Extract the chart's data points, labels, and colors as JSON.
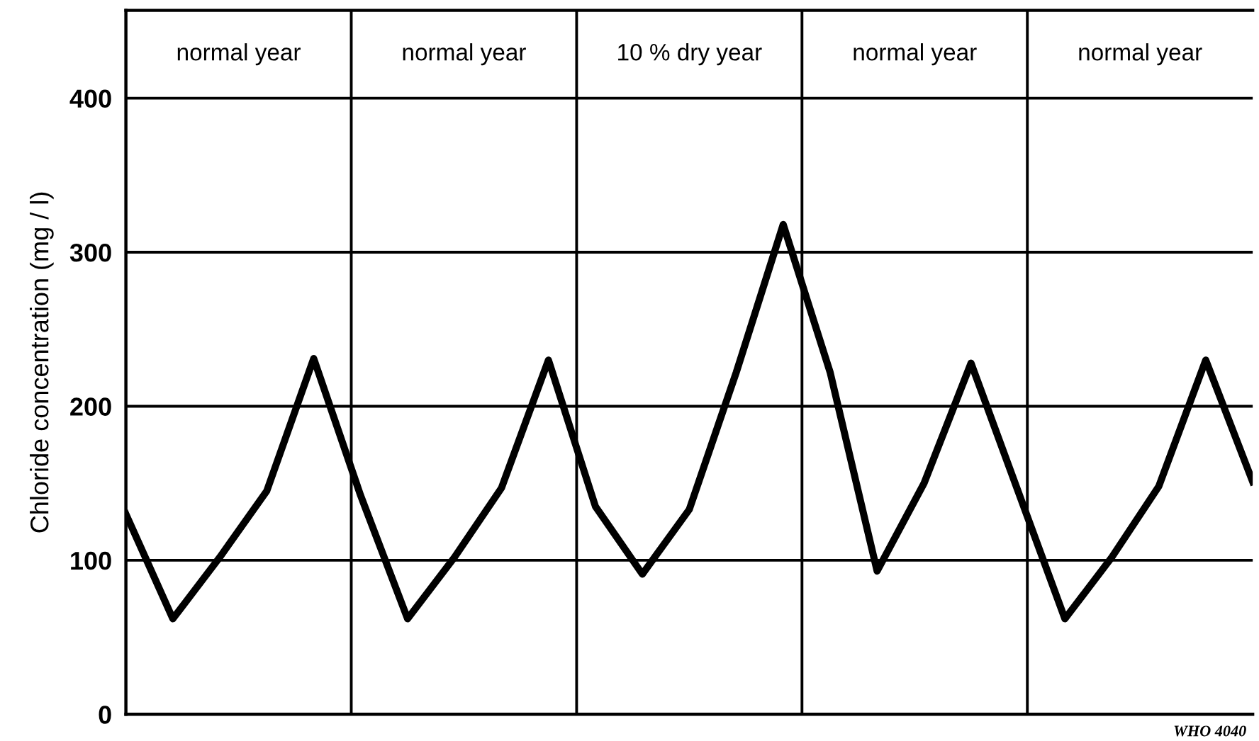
{
  "chart_data": {
    "type": "line",
    "ylabel": "Chloride concentration (mg / l)",
    "categories": [
      null,
      null,
      null,
      null,
      null,
      null,
      null,
      null,
      null,
      null,
      null,
      null,
      null,
      null,
      null,
      null,
      null,
      null,
      null,
      null,
      null,
      null,
      null,
      null,
      null
    ],
    "series": [
      {
        "color": "#000000",
        "values": [
          130,
          62,
          102,
          145,
          231,
          142,
          62,
          102,
          147,
          230,
          135,
          91,
          133,
          222,
          318,
          222,
          93,
          150,
          228,
          145,
          62,
          102,
          148,
          230,
          151
        ]
      }
    ],
    "ylim": [
      0,
      457
    ],
    "yticks": [
      0,
      100,
      200,
      300,
      400
    ],
    "tick_labels": "y",
    "grid": "y",
    "marker": "none",
    "line_style": "solid",
    "annotations": [
      "normal year",
      "normal year",
      "10 % dry year",
      "normal year",
      "normal year",
      "WHO 4040"
    ]
  }
}
